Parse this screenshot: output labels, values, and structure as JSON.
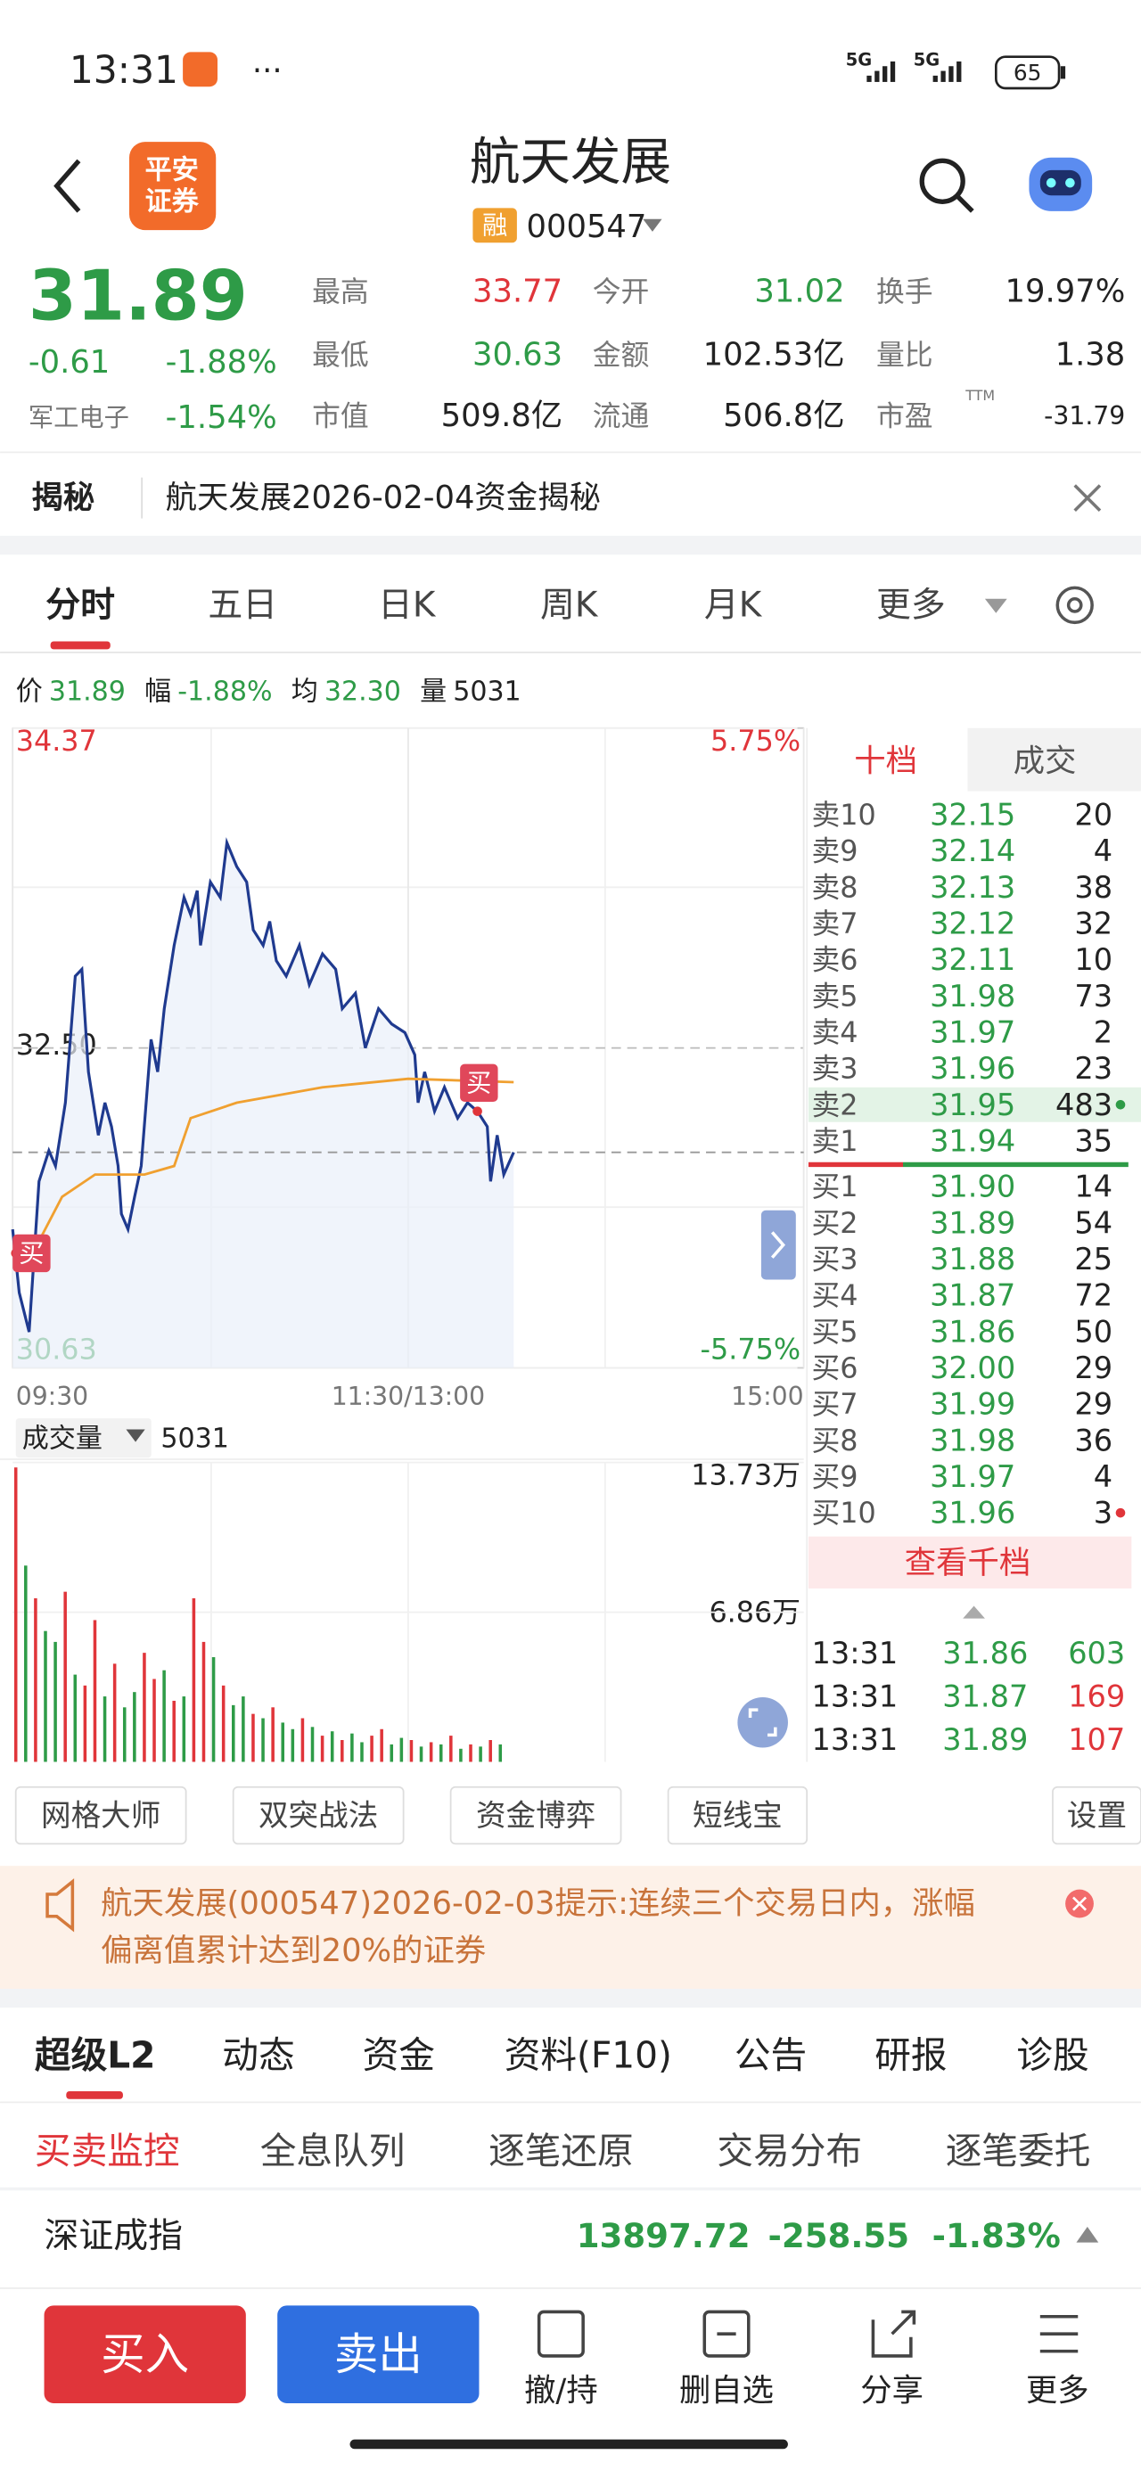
{
  "status_bar": {
    "time": "13:31",
    "network": [
      "5G",
      "5G"
    ],
    "battery": "65"
  },
  "header": {
    "title": "航天发展",
    "margin_tag": "融",
    "code": "000547",
    "logo": [
      "平安",
      "证券"
    ]
  },
  "quote": {
    "price": "31.89",
    "change": "-0.61",
    "change_pct": "-1.88%",
    "sector": "军工电子",
    "sector_pct": "-1.54%",
    "stats": [
      [
        "最高",
        "33.77"
      ],
      [
        "今开",
        "31.02"
      ],
      [
        "换手",
        "19.97%"
      ],
      [
        "最低",
        "30.63"
      ],
      [
        "金额",
        "102.53亿"
      ],
      [
        "量比",
        "1.38"
      ],
      [
        "市值",
        "509.8亿"
      ],
      [
        "流通",
        "506.8亿"
      ],
      [
        "市盈",
        "-31.79"
      ]
    ],
    "pe_mark": "TTM"
  },
  "reveal": {
    "label": "揭秘",
    "text": "航天发展2026-02-04资金揭秘"
  },
  "chart_tabs": [
    "分时",
    "五日",
    "日K",
    "周K",
    "月K",
    "更多"
  ],
  "chart_data": {
    "type": "line",
    "info": [
      [
        "价",
        "31.89"
      ],
      [
        "幅",
        "-1.88%"
      ],
      [
        "均",
        "32.30"
      ],
      [
        "量",
        "5031"
      ]
    ],
    "xlim": [
      0,
      240
    ],
    "xticks": [
      {
        "value": 0,
        "label": "09:30"
      },
      {
        "value": 120,
        "label": "11:30/13:00"
      },
      {
        "value": 240,
        "label": "15:00"
      }
    ],
    "ylim": [
      30.63,
      34.37
    ],
    "yticks": [
      34.37,
      {
        "value": 32.5,
        "label": "32.50"
      },
      30.63
    ],
    "y2lim": [
      -5.75,
      5.75
    ],
    "y2ticks": [
      {
        "value": 5.75,
        "label": "5.75%"
      },
      {
        "value": -5.75,
        "label": "-5.75%"
      }
    ],
    "series": [
      {
        "name": "价",
        "color": "#1f3a8f",
        "x": [
          0,
          2,
          5,
          8,
          11,
          13,
          16,
          19,
          21,
          23,
          26,
          28,
          30,
          32,
          33,
          35,
          37,
          39,
          42,
          44,
          46,
          49,
          52,
          54,
          56,
          57,
          60,
          63,
          65,
          68,
          71,
          73,
          76,
          78,
          80,
          83,
          87,
          90,
          94,
          98,
          100,
          104,
          107,
          111,
          115,
          119,
          122,
          123,
          125,
          128,
          131,
          135,
          138,
          141,
          144,
          145,
          147,
          149,
          152
        ],
        "values": [
          31.44,
          31.07,
          30.84,
          31.72,
          31.9,
          31.81,
          32.18,
          32.92,
          32.96,
          32.36,
          31.99,
          32.18,
          32.04,
          31.81,
          31.53,
          31.44,
          31.63,
          31.81,
          32.55,
          32.36,
          32.73,
          33.1,
          33.38,
          33.28,
          33.42,
          33.1,
          33.47,
          33.38,
          33.7,
          33.56,
          33.47,
          33.19,
          33.1,
          33.24,
          33.01,
          32.92,
          33.1,
          32.87,
          33.05,
          32.96,
          32.73,
          32.82,
          32.5,
          32.73,
          32.64,
          32.59,
          32.46,
          32.18,
          32.36,
          32.13,
          32.27,
          32.09,
          32.18,
          32.13,
          32.04,
          31.72,
          31.99,
          31.76,
          31.89
        ]
      },
      {
        "name": "均",
        "color": "#f0a030",
        "x": [
          5,
          15,
          25,
          40,
          49,
          54,
          68,
          94,
          120,
          152
        ],
        "values": [
          31.26,
          31.63,
          31.76,
          31.76,
          31.81,
          32.09,
          32.18,
          32.27,
          32.32,
          32.3
        ]
      }
    ],
    "markers": [
      {
        "label": "买",
        "x": 0,
        "y": 31.3
      },
      {
        "label": "买",
        "x": 141,
        "y": 32.13
      }
    ],
    "volume": {
      "label": "成交量",
      "value": "5031",
      "ylim": [
        0,
        13.73
      ],
      "yticks": [
        {
          "value": 13.73,
          "label": "13.73万"
        },
        {
          "value": 6.86,
          "label": "6.86万"
        }
      ],
      "x": [
        0,
        3,
        6,
        9,
        12,
        15,
        18,
        21,
        24,
        27,
        30,
        33,
        36,
        39,
        42,
        45,
        48,
        51,
        54,
        57,
        60,
        63,
        66,
        69,
        72,
        75,
        78,
        81,
        84,
        87,
        90,
        93,
        96,
        99,
        102,
        105,
        108,
        111,
        114,
        117,
        120,
        123,
        126,
        129,
        132,
        135,
        138,
        141,
        144,
        147
      ],
      "values": [
        13.5,
        9.0,
        7.5,
        6.0,
        5.5,
        7.8,
        4.0,
        3.5,
        6.5,
        3.0,
        4.5,
        2.5,
        3.2,
        5.0,
        3.8,
        4.2,
        2.8,
        3.0,
        7.5,
        5.5,
        4.8,
        3.5,
        2.6,
        3.0,
        2.2,
        2.0,
        2.5,
        1.8,
        1.5,
        2.0,
        1.6,
        1.2,
        1.4,
        1.0,
        1.3,
        0.9,
        1.2,
        1.5,
        0.8,
        1.1,
        1.0,
        0.7,
        0.9,
        0.8,
        1.2,
        0.6,
        0.8,
        0.7,
        1.0,
        0.8
      ],
      "colors": [
        "#e0353a",
        "#2e9b47",
        "#e0353a",
        "#2e9b47",
        "#2e9b47",
        "#e0353a",
        "#2e9b47",
        "#e0353a",
        "#e0353a",
        "#2e9b47",
        "#e0353a",
        "#2e9b47",
        "#2e9b47",
        "#e0353a",
        "#e0353a",
        "#2e9b47",
        "#e0353a",
        "#2e9b47",
        "#e0353a",
        "#e0353a",
        "#2e9b47",
        "#e0353a",
        "#2e9b47",
        "#2e9b47",
        "#e0353a",
        "#2e9b47",
        "#e0353a",
        "#2e9b47",
        "#2e9b47",
        "#e0353a",
        "#2e9b47",
        "#e0353a",
        "#2e9b47",
        "#e0353a",
        "#2e9b47",
        "#2e9b47",
        "#e0353a",
        "#e0353a",
        "#2e9b47",
        "#2e9b47",
        "#e0353a",
        "#2e9b47",
        "#e0353a",
        "#2e9b47",
        "#e0353a",
        "#2e9b47",
        "#e0353a",
        "#2e9b47",
        "#e0353a",
        "#2e9b47"
      ]
    }
  },
  "order_book": {
    "tabs": [
      "十档",
      "成交"
    ],
    "asks": [
      [
        "卖10",
        "32.15",
        "20"
      ],
      [
        "卖9",
        "32.14",
        "4"
      ],
      [
        "卖8",
        "32.13",
        "38"
      ],
      [
        "卖7",
        "32.12",
        "32"
      ],
      [
        "卖6",
        "32.11",
        "10"
      ],
      [
        "卖5",
        "31.98",
        "73"
      ],
      [
        "卖4",
        "31.97",
        "2"
      ],
      [
        "卖3",
        "31.96",
        "23"
      ],
      [
        "卖2",
        "31.95",
        "483"
      ],
      [
        "卖1",
        "31.94",
        "35"
      ]
    ],
    "bids": [
      [
        "买1",
        "31.90",
        "14"
      ],
      [
        "买2",
        "31.89",
        "54"
      ],
      [
        "买3",
        "31.88",
        "25"
      ],
      [
        "买4",
        "31.87",
        "72"
      ],
      [
        "买5",
        "31.86",
        "50"
      ],
      [
        "买6",
        "32.00",
        "29"
      ],
      [
        "买7",
        "31.99",
        "29"
      ],
      [
        "买8",
        "31.98",
        "36"
      ],
      [
        "买9",
        "31.97",
        "4"
      ],
      [
        "买10",
        "31.96",
        "3"
      ]
    ],
    "more": "查看千档",
    "trades": [
      [
        "13:31",
        "31.86",
        "603"
      ],
      [
        "13:31",
        "31.87",
        "169"
      ],
      [
        "13:31",
        "31.89",
        "107"
      ]
    ]
  },
  "tools": [
    "网格大师",
    "双突战法",
    "资金博弈",
    "短线宝"
  ],
  "settings": "设置",
  "notice": [
    "航天发展(000547)2026-02-03提示:连续三个交易日内，涨幅",
    "偏离值累计达到20%的证券"
  ],
  "info_tabs": [
    "超级L2",
    "动态",
    "资金",
    "资料(F10)",
    "公告",
    "研报",
    "诊股"
  ],
  "sub_tabs": [
    "买卖监控",
    "全息队列",
    "逐笔还原",
    "交易分布",
    "逐笔委托"
  ],
  "index": {
    "name": "深证成指",
    "value": "13897.72",
    "change": "-258.55",
    "change_pct": "-1.83%"
  },
  "bottom_bar": {
    "buy": "买入",
    "sell": "卖出",
    "actions": [
      "撤/持",
      "删自选",
      "分享",
      "更多"
    ]
  }
}
